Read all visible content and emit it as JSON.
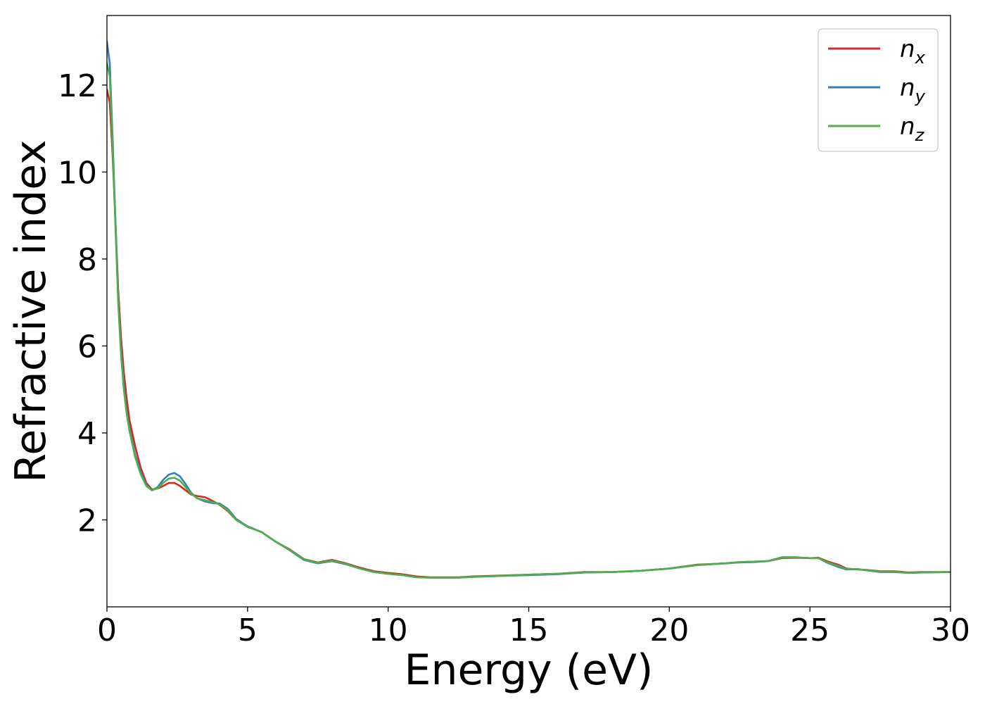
{
  "chart_data": {
    "type": "line",
    "title": "",
    "xlabel": "Energy (eV)",
    "ylabel": "Refractive index",
    "xlim": [
      0,
      30
    ],
    "ylim": [
      0.0,
      13.6
    ],
    "xticks": [
      0,
      5,
      10,
      15,
      20,
      25,
      30
    ],
    "yticks": [
      2,
      4,
      6,
      8,
      10,
      12
    ],
    "grid": false,
    "legend_position": "top-right",
    "series": [
      {
        "name": "n",
        "subscript": "x",
        "color": "#d62728",
        "x": [
          0,
          0.1,
          0.2,
          0.3,
          0.4,
          0.5,
          0.6,
          0.7,
          0.8,
          1.0,
          1.2,
          1.4,
          1.6,
          1.8,
          2.0,
          2.2,
          2.4,
          2.6,
          2.8,
          3.0,
          3.2,
          3.5,
          3.8,
          4.0,
          4.3,
          4.6,
          5.0,
          5.5,
          6.0,
          6.5,
          7.0,
          7.5,
          8.0,
          8.5,
          9.0,
          9.5,
          10.0,
          10.5,
          11.0,
          11.5,
          12.0,
          12.5,
          13.0,
          14.0,
          15.0,
          16.0,
          17.0,
          18.0,
          19.0,
          20.0,
          21.0,
          22.0,
          22.5,
          23.0,
          23.5,
          24.0,
          24.5,
          25.0,
          25.3,
          25.6,
          26.0,
          26.3,
          26.7,
          27.0,
          27.5,
          28.0,
          28.5,
          29.0,
          30.0
        ],
        "y": [
          11.9,
          11.6,
          10.4,
          8.9,
          7.3,
          6.2,
          5.4,
          4.8,
          4.3,
          3.7,
          3.2,
          2.85,
          2.7,
          2.72,
          2.78,
          2.85,
          2.85,
          2.78,
          2.68,
          2.58,
          2.55,
          2.52,
          2.42,
          2.35,
          2.2,
          2.0,
          1.85,
          1.72,
          1.5,
          1.32,
          1.1,
          1.02,
          1.08,
          1.0,
          0.9,
          0.82,
          0.78,
          0.75,
          0.7,
          0.68,
          0.68,
          0.68,
          0.7,
          0.72,
          0.74,
          0.76,
          0.8,
          0.8,
          0.83,
          0.88,
          0.97,
          1.0,
          1.03,
          1.04,
          1.05,
          1.12,
          1.13,
          1.12,
          1.13,
          1.05,
          0.97,
          0.88,
          0.86,
          0.85,
          0.82,
          0.82,
          0.79,
          0.8,
          0.8
        ]
      },
      {
        "name": "n",
        "subscript": "y",
        "color": "#377eb8",
        "x": [
          0,
          0.1,
          0.2,
          0.3,
          0.4,
          0.5,
          0.6,
          0.7,
          0.8,
          1.0,
          1.2,
          1.4,
          1.6,
          1.8,
          2.0,
          2.2,
          2.4,
          2.6,
          2.8,
          3.0,
          3.2,
          3.5,
          3.8,
          4.0,
          4.3,
          4.6,
          5.0,
          5.5,
          6.0,
          6.5,
          7.0,
          7.5,
          8.0,
          8.5,
          9.0,
          9.5,
          10.0,
          10.5,
          11.0,
          11.5,
          12.0,
          12.5,
          13.0,
          14.0,
          15.0,
          16.0,
          17.0,
          18.0,
          19.0,
          20.0,
          21.0,
          22.0,
          22.5,
          23.0,
          23.5,
          24.0,
          24.5,
          25.0,
          25.3,
          25.6,
          26.0,
          26.3,
          26.7,
          27.0,
          27.5,
          28.0,
          28.5,
          29.0,
          30.0
        ],
        "y": [
          13.0,
          12.5,
          10.8,
          8.9,
          7.1,
          5.9,
          5.1,
          4.5,
          4.1,
          3.5,
          3.1,
          2.8,
          2.68,
          2.75,
          2.92,
          3.04,
          3.08,
          3.0,
          2.82,
          2.62,
          2.5,
          2.42,
          2.38,
          2.38,
          2.25,
          2.02,
          1.85,
          1.72,
          1.5,
          1.3,
          1.08,
          1.0,
          1.05,
          0.98,
          0.88,
          0.8,
          0.76,
          0.73,
          0.68,
          0.67,
          0.67,
          0.67,
          0.69,
          0.71,
          0.73,
          0.75,
          0.79,
          0.8,
          0.83,
          0.88,
          0.96,
          1.0,
          1.02,
          1.03,
          1.05,
          1.14,
          1.14,
          1.12,
          1.12,
          1.02,
          0.92,
          0.86,
          0.87,
          0.84,
          0.8,
          0.8,
          0.78,
          0.79,
          0.8
        ]
      },
      {
        "name": "n",
        "subscript": "z",
        "color": "#4daf4a",
        "x": [
          0,
          0.1,
          0.2,
          0.3,
          0.4,
          0.5,
          0.6,
          0.7,
          0.8,
          1.0,
          1.2,
          1.4,
          1.6,
          1.8,
          2.0,
          2.2,
          2.4,
          2.6,
          2.8,
          3.0,
          3.2,
          3.5,
          3.8,
          4.0,
          4.3,
          4.6,
          5.0,
          5.5,
          6.0,
          6.5,
          7.0,
          7.5,
          8.0,
          8.5,
          9.0,
          9.5,
          10.0,
          10.5,
          11.0,
          11.5,
          12.0,
          12.5,
          13.0,
          14.0,
          15.0,
          16.0,
          17.0,
          18.0,
          19.0,
          20.0,
          21.0,
          22.0,
          22.5,
          23.0,
          23.5,
          24.0,
          24.5,
          25.0,
          25.3,
          25.6,
          26.0,
          26.3,
          26.7,
          27.0,
          27.5,
          28.0,
          28.5,
          29.0,
          30.0
        ],
        "y": [
          12.5,
          12.2,
          10.6,
          8.8,
          7.0,
          5.8,
          5.0,
          4.45,
          4.05,
          3.45,
          3.05,
          2.78,
          2.68,
          2.73,
          2.85,
          2.95,
          2.97,
          2.9,
          2.75,
          2.6,
          2.5,
          2.45,
          2.4,
          2.36,
          2.22,
          2.0,
          1.84,
          1.72,
          1.5,
          1.31,
          1.09,
          1.01,
          1.06,
          0.99,
          0.88,
          0.8,
          0.76,
          0.73,
          0.68,
          0.67,
          0.67,
          0.67,
          0.69,
          0.71,
          0.74,
          0.76,
          0.79,
          0.8,
          0.83,
          0.88,
          0.96,
          1.0,
          1.03,
          1.04,
          1.05,
          1.13,
          1.14,
          1.12,
          1.12,
          1.03,
          0.94,
          0.87,
          0.87,
          0.84,
          0.81,
          0.81,
          0.78,
          0.79,
          0.8
        ]
      }
    ]
  }
}
